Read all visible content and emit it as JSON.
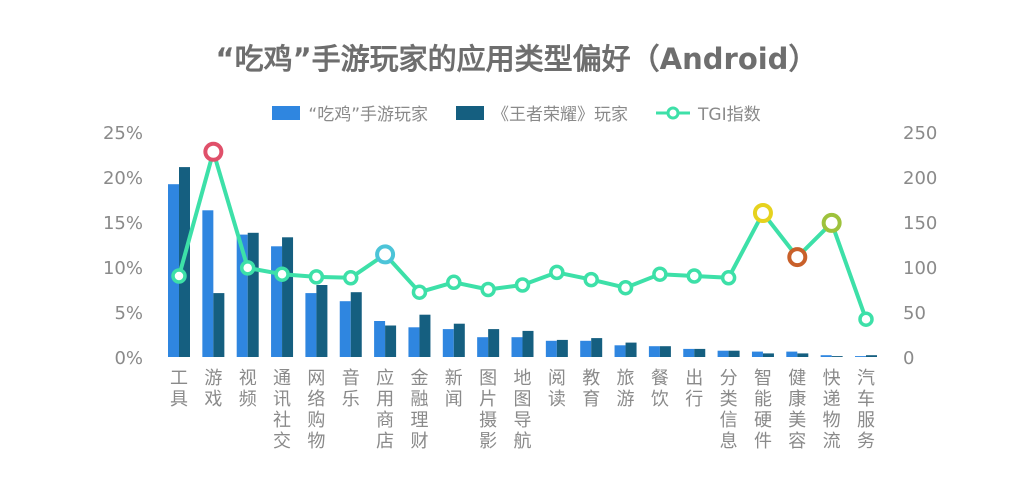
{
  "chart_data": {
    "type": "bar+line",
    "title": "“吃鸡”手游玩家的应用类型偏好（Android）",
    "categories": [
      "工具",
      "游戏",
      "视频",
      "通讯社交",
      "网络购物",
      "音乐",
      "应用商店",
      "金融理财",
      "新闻",
      "图片摄影",
      "地图导航",
      "阅读",
      "教育",
      "旅游",
      "餐饮",
      "出行",
      "分类信息",
      "智能硬件",
      "健康美容",
      "快递物流",
      "汽车服务"
    ],
    "series": [
      {
        "name": "“吃鸡”手游玩家",
        "type": "bar",
        "axis": "left",
        "color": "#2f86e0",
        "values": [
          19.2,
          16.3,
          13.6,
          12.3,
          7.1,
          6.2,
          4.0,
          3.3,
          3.1,
          2.2,
          2.2,
          1.8,
          1.8,
          1.3,
          1.2,
          0.9,
          0.7,
          0.6,
          0.6,
          0.2,
          0.1
        ]
      },
      {
        "name": "《王者荣耀》玩家",
        "type": "bar",
        "axis": "left",
        "color": "#155f80",
        "values": [
          21.1,
          7.1,
          13.8,
          13.3,
          8.0,
          7.2,
          3.5,
          4.7,
          3.7,
          3.1,
          2.9,
          1.9,
          2.1,
          1.6,
          1.2,
          0.9,
          0.7,
          0.4,
          0.4,
          0.1,
          0.2
        ]
      },
      {
        "name": "TGI指数",
        "type": "line",
        "axis": "right",
        "color": "#3de0a8",
        "values": [
          90,
          228,
          99,
          92,
          89,
          88,
          114,
          72,
          83,
          75,
          80,
          94,
          86,
          77,
          92,
          90,
          88,
          160,
          111,
          149,
          42
        ]
      }
    ],
    "highlight_markers": [
      {
        "category": "游戏",
        "color": "#e0506a"
      },
      {
        "category": "应用商店",
        "color": "#4cc4d8"
      },
      {
        "category": "智能硬件",
        "color": "#e6d21e"
      },
      {
        "category": "健康美容",
        "color": "#c9602a"
      },
      {
        "category": "快递物流",
        "color": "#9ec23c"
      }
    ],
    "left_axis": {
      "ylim": [
        0,
        25
      ],
      "ticks": [
        "0%",
        "5%",
        "10%",
        "15%",
        "20%",
        "25%"
      ]
    },
    "right_axis": {
      "ylim": [
        0,
        250
      ],
      "ticks": [
        "0",
        "50",
        "100",
        "150",
        "200",
        "250"
      ]
    },
    "legend_position": "top",
    "grid": false,
    "xlabel": "",
    "ylabel": ""
  },
  "title": "“吃鸡”手游玩家的应用类型偏好（Android）",
  "legend": {
    "bar1": "“吃鸡”手游玩家",
    "bar2": "《王者荣耀》玩家",
    "line": "TGI指数"
  }
}
